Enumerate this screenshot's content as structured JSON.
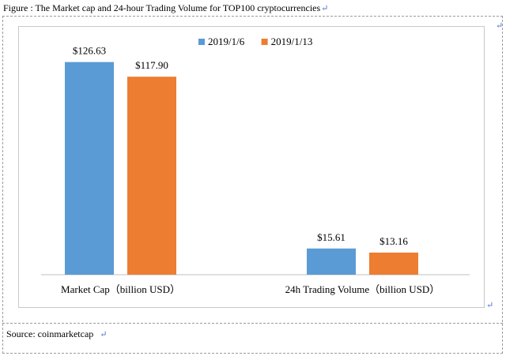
{
  "caption": "Figure : The Market cap and 24-hour Trading Volume for TOP100 cryptocurrencies",
  "return_mark": "↵",
  "source": "Source: coinmarketcap",
  "colors": {
    "series_1": "#5b9bd5",
    "series_2": "#ed7d31"
  },
  "chart_data": {
    "type": "bar",
    "categories": [
      "Market Cap（billion USD）",
      "24h Trading Volume（billion USD）"
    ],
    "series": [
      {
        "name": "2019/1/6",
        "values": [
          126.63,
          15.61
        ],
        "labels": [
          "$126.63",
          "$15.61"
        ]
      },
      {
        "name": "2019/1/13",
        "values": [
          117.9,
          13.16
        ],
        "labels": [
          "$117.90",
          "$13.16"
        ]
      }
    ],
    "ylim": [
      0,
      140
    ],
    "legend": "top-center",
    "grid": false
  }
}
